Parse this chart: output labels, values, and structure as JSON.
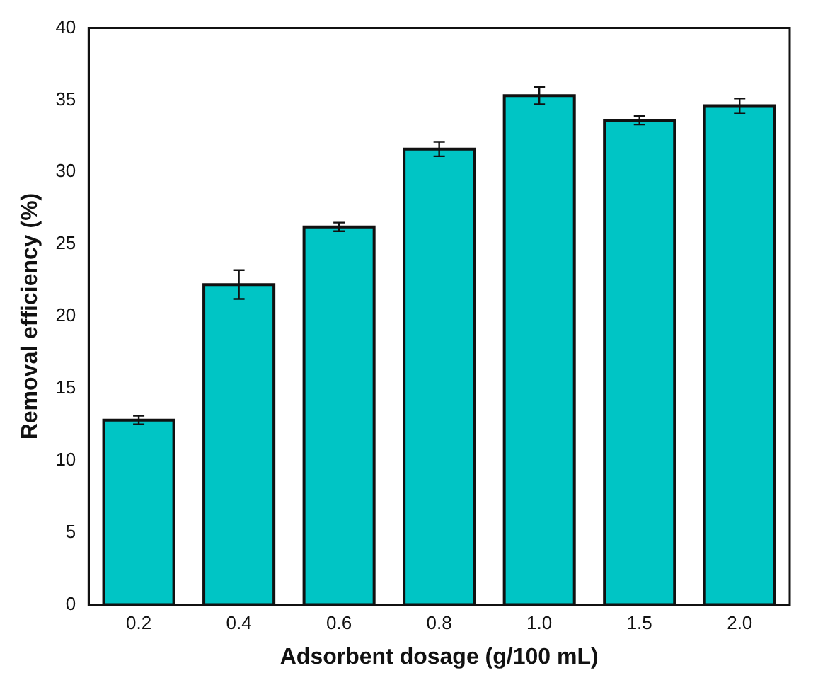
{
  "chart_data": {
    "type": "bar",
    "xlabel": "Adsorbent dosage (g/100 mL)",
    "ylabel": "Removal efficiency (%)",
    "categories": [
      "0.2",
      "0.4",
      "0.6",
      "0.8",
      "1.0",
      "1.5",
      "2.0"
    ],
    "values": [
      12.8,
      22.2,
      26.2,
      31.6,
      35.3,
      33.6,
      34.6
    ],
    "errors": [
      0.3,
      1.0,
      0.3,
      0.5,
      0.6,
      0.3,
      0.5
    ],
    "color": "#00c5c5",
    "ylim": [
      0,
      40
    ],
    "yticks": [
      0,
      5,
      10,
      15,
      20,
      25,
      30,
      35,
      40
    ],
    "grid": false,
    "legend": false
  }
}
